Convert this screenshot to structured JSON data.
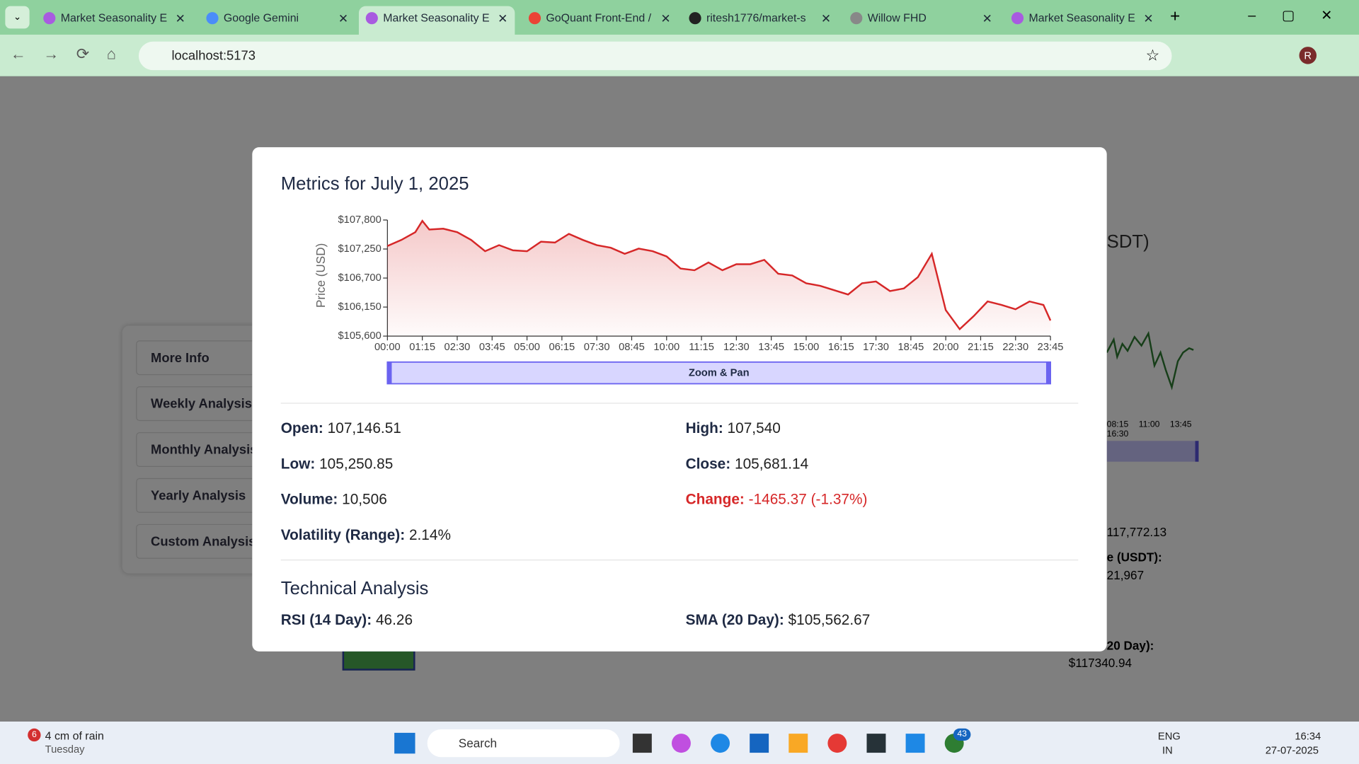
{
  "browser": {
    "tabs": [
      "Market Seasonality E",
      "Google Gemini",
      "Market Seasonality E",
      "GoQuant Front-End /",
      "ritesh1776/market-s",
      "Willow FHD",
      "Market Seasonality E"
    ],
    "address": "localhost:5173"
  },
  "background": {
    "sidebar": [
      "More Info",
      "Weekly Analysis",
      "Monthly Analysis",
      "Yearly Analysis",
      "Custom Analysis"
    ],
    "card": {
      "heading": "SDT)",
      "ticks": [
        "08:15",
        "11:00",
        "13:45",
        "16:30"
      ],
      "lines": [
        "117,772.13",
        "e (USDT):",
        "21,967",
        "20 Day):",
        "$117340.94"
      ]
    }
  },
  "modal": {
    "title": "Metrics for July 1, 2025",
    "chart": {
      "type": "line",
      "y_label": "Price (USD)",
      "zoom_label": "Zoom & Pan",
      "color": "#d62728",
      "x": [
        0,
        30,
        60,
        75,
        90,
        120,
        150,
        180,
        210,
        240,
        270,
        300,
        330,
        360,
        390,
        420,
        450,
        480,
        510,
        540,
        570,
        600,
        630,
        660,
        690,
        720,
        750,
        780,
        810,
        840,
        870,
        900,
        930,
        960,
        990,
        1020,
        1050,
        1080,
        1110,
        1140,
        1170,
        1200,
        1230,
        1260,
        1290,
        1320,
        1350,
        1380,
        1410,
        1425
      ],
      "values": [
        107307,
        107422,
        107570,
        107784,
        107620,
        107636,
        107570,
        107422,
        107209,
        107324,
        107225,
        107209,
        107390,
        107373,
        107537,
        107422,
        107324,
        107274,
        107160,
        107258,
        107209,
        107110,
        106880,
        106848,
        106995,
        106848,
        106963,
        106963,
        107045,
        106782,
        106749,
        106601,
        106552,
        106470,
        106388,
        106601,
        106634,
        106454,
        106503,
        106716,
        107160,
        106092,
        105731,
        105977,
        106257,
        106191,
        106109,
        106257,
        106191,
        105895
      ],
      "xlim": [
        0,
        1425
      ],
      "xticks": [
        {
          "value": 0,
          "label": "00:00"
        },
        {
          "value": 75,
          "label": "01:15"
        },
        {
          "value": 150,
          "label": "02:30"
        },
        {
          "value": 225,
          "label": "03:45"
        },
        {
          "value": 300,
          "label": "05:00"
        },
        {
          "value": 375,
          "label": "06:15"
        },
        {
          "value": 450,
          "label": "07:30"
        },
        {
          "value": 525,
          "label": "08:45"
        },
        {
          "value": 600,
          "label": "10:00"
        },
        {
          "value": 675,
          "label": "11:15"
        },
        {
          "value": 750,
          "label": "12:30"
        },
        {
          "value": 825,
          "label": "13:45"
        },
        {
          "value": 900,
          "label": "15:00"
        },
        {
          "value": 975,
          "label": "16:15"
        },
        {
          "value": 1050,
          "label": "17:30"
        },
        {
          "value": 1125,
          "label": "18:45"
        },
        {
          "value": 1200,
          "label": "20:00"
        },
        {
          "value": 1275,
          "label": "21:15"
        },
        {
          "value": 1350,
          "label": "22:30"
        },
        {
          "value": 1425,
          "label": "23:45"
        }
      ],
      "ylim": [
        105600,
        107800
      ],
      "yticks": [
        {
          "value": 105600,
          "label": "$105,600"
        },
        {
          "value": 106150,
          "label": "$106,150"
        },
        {
          "value": 106700,
          "label": "$106,700"
        },
        {
          "value": 107250,
          "label": "$107,250"
        },
        {
          "value": 107800,
          "label": "$107,800"
        }
      ]
    },
    "metrics": [
      {
        "label": "Open:",
        "value": "107,146.51"
      },
      {
        "label": "High:",
        "value": "107,540"
      },
      {
        "label": "Low:",
        "value": "105,250.85"
      },
      {
        "label": "Close:",
        "value": "105,681.14"
      },
      {
        "label": "Volume:",
        "value": "10,506"
      },
      {
        "label": "Change:",
        "value": "-1465.37 (-1.37%)"
      },
      {
        "label": "Volatility (Range):",
        "value": "2.14%"
      }
    ],
    "technical": {
      "title": "Technical Analysis",
      "items": [
        {
          "label": "RSI (14 Day):",
          "value": "46.26"
        },
        {
          "label": "SMA (20 Day):",
          "value": "$105,562.67"
        }
      ]
    }
  },
  "taskbar": {
    "weather": "4 cm of rain",
    "day": "Tuesday",
    "weather_badge": "6",
    "search": "Search",
    "lang": "ENG",
    "region": "IN",
    "time": "16:34",
    "date": "27-07-2025",
    "whatsapp_badge": "43"
  }
}
